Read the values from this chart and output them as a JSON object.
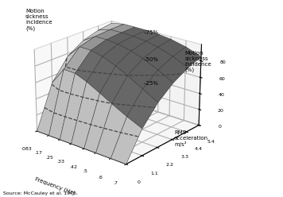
{
  "freq_labels": [
    ".083",
    ".17",
    ".25",
    ".33",
    ".42",
    ".5",
    ".6",
    ".7"
  ],
  "freq_values": [
    0.083,
    0.17,
    0.25,
    0.33,
    0.42,
    0.5,
    0.6,
    0.7
  ],
  "accel_labels": [
    "0",
    "1.1",
    "2.2",
    "3.3",
    "4.4",
    "5.4"
  ],
  "accel_values": [
    0.0,
    1.1,
    2.2,
    3.3,
    4.4,
    5.4
  ],
  "zticks": [
    0,
    20,
    40,
    60,
    80
  ],
  "contour_levels": [
    25,
    50,
    75
  ],
  "source": "Source: McCauley et al. 1976.",
  "surface_color": "#d8d8d8",
  "edge_color": "#333333",
  "contour_color": "#444444",
  "pane_color": "#f0f0f0",
  "elev": 22,
  "azim": -50
}
